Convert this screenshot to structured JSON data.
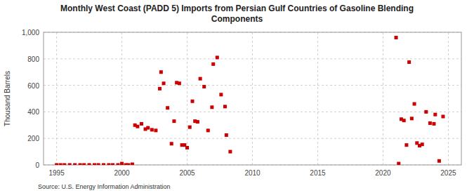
{
  "chart_data": {
    "type": "scatter",
    "title": "Monthly West Coast (PADD 5) Imports from Persian Gulf Countries of Gasoline Blending\nComponents",
    "ylabel": "Thousand Barrels",
    "source": "Source: U.S. Energy Information Administration",
    "color": "#cc0000",
    "marker": "square",
    "grid": true,
    "xlim": [
      1994.0,
      2026.0
    ],
    "ylim": [
      0,
      1000
    ],
    "xticks": [
      1995,
      2000,
      2005,
      2010,
      2015,
      2020,
      2025
    ],
    "yticks": [
      0,
      200,
      400,
      600,
      800,
      {
        "value": 1000,
        "label": "1,000"
      }
    ],
    "x": [
      1995.0,
      1995.3,
      1995.6,
      1996.0,
      1996.4,
      1996.8,
      1997.1,
      1997.5,
      1997.9,
      1998.2,
      1998.6,
      1999.0,
      1999.3,
      1999.7,
      2000.0,
      2000.3,
      2000.5,
      2000.8,
      2001.0,
      2001.2,
      2001.5,
      2001.8,
      2002.0,
      2002.3,
      2002.6,
      2002.9,
      2003.0,
      2003.2,
      2003.5,
      2003.8,
      2004.0,
      2004.2,
      2004.4,
      2004.6,
      2004.8,
      2005.0,
      2005.2,
      2005.4,
      2005.6,
      2005.8,
      2006.0,
      2006.3,
      2006.6,
      2006.9,
      2007.0,
      2007.3,
      2007.6,
      2007.9,
      2008.0,
      2008.3,
      2021.0,
      2021.2,
      2021.4,
      2021.6,
      2021.8,
      2022.0,
      2022.2,
      2022.4,
      2022.6,
      2022.8,
      2023.0,
      2023.3,
      2023.6,
      2023.9,
      2024.0,
      2024.3,
      2024.6
    ],
    "values": [
      0,
      0,
      0,
      0,
      0,
      0,
      0,
      0,
      0,
      0,
      0,
      0,
      0,
      0,
      10,
      0,
      0,
      5,
      300,
      290,
      310,
      270,
      280,
      265,
      260,
      575,
      700,
      615,
      430,
      160,
      330,
      620,
      615,
      150,
      150,
      130,
      285,
      480,
      330,
      325,
      650,
      590,
      260,
      435,
      760,
      810,
      530,
      440,
      225,
      100,
      960,
      10,
      345,
      335,
      150,
      775,
      350,
      460,
      165,
      145,
      155,
      400,
      315,
      310,
      380,
      30,
      365
    ]
  }
}
